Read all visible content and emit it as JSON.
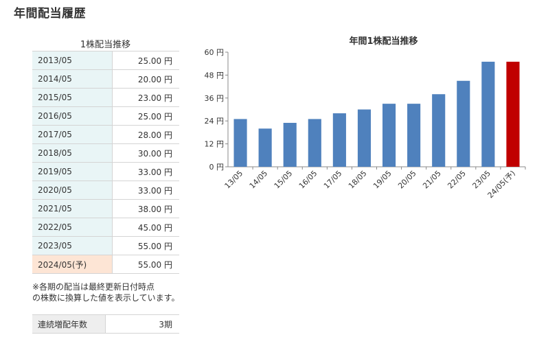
{
  "page": {
    "title": "年間配当履歴"
  },
  "dividend_table": {
    "title": "1株配当推移",
    "rows": [
      {
        "period": "2013/05",
        "value": "25.00 円"
      },
      {
        "period": "2014/05",
        "value": "20.00 円"
      },
      {
        "period": "2015/05",
        "value": "23.00 円"
      },
      {
        "period": "2016/05",
        "value": "25.00 円"
      },
      {
        "period": "2017/05",
        "value": "28.00 円"
      },
      {
        "period": "2018/05",
        "value": "30.00 円"
      },
      {
        "period": "2019/05",
        "value": "33.00 円"
      },
      {
        "period": "2020/05",
        "value": "33.00 円"
      },
      {
        "period": "2021/05",
        "value": "38.00 円"
      },
      {
        "period": "2022/05",
        "value": "45.00 円"
      },
      {
        "period": "2023/05",
        "value": "55.00 円"
      },
      {
        "period": "2024/05(予)",
        "value": "55.00 円"
      }
    ]
  },
  "note": {
    "line1": "※各期の配当は最終更新日付時点",
    "line2": "の株数に換算した値を表示しています。"
  },
  "streak": {
    "label": "連続増配年数",
    "value": "3期"
  },
  "colors": {
    "bar_actual": "#4f81bd",
    "bar_forecast": "#c00000",
    "period_cell_bg": "#e9f5f6",
    "forecast_cell_bg": "#fde5d5"
  },
  "chart_data": {
    "type": "bar",
    "title": "年間1株配当推移",
    "categories": [
      "13/05",
      "14/05",
      "15/05",
      "16/05",
      "17/05",
      "18/05",
      "19/05",
      "20/05",
      "21/05",
      "22/05",
      "23/05",
      "24/05(予)"
    ],
    "values": [
      25,
      20,
      23,
      25,
      28,
      30,
      33,
      33,
      38,
      45,
      55,
      55
    ],
    "forecast_index": 11,
    "ylim": [
      0,
      60
    ],
    "yticks": [
      0,
      12,
      24,
      36,
      48,
      60
    ],
    "ytick_labels": [
      "0 円",
      "12 円",
      "24 円",
      "36 円",
      "48 円",
      "60 円"
    ],
    "xlabel": "",
    "ylabel": "",
    "grid": false,
    "legend": false
  }
}
